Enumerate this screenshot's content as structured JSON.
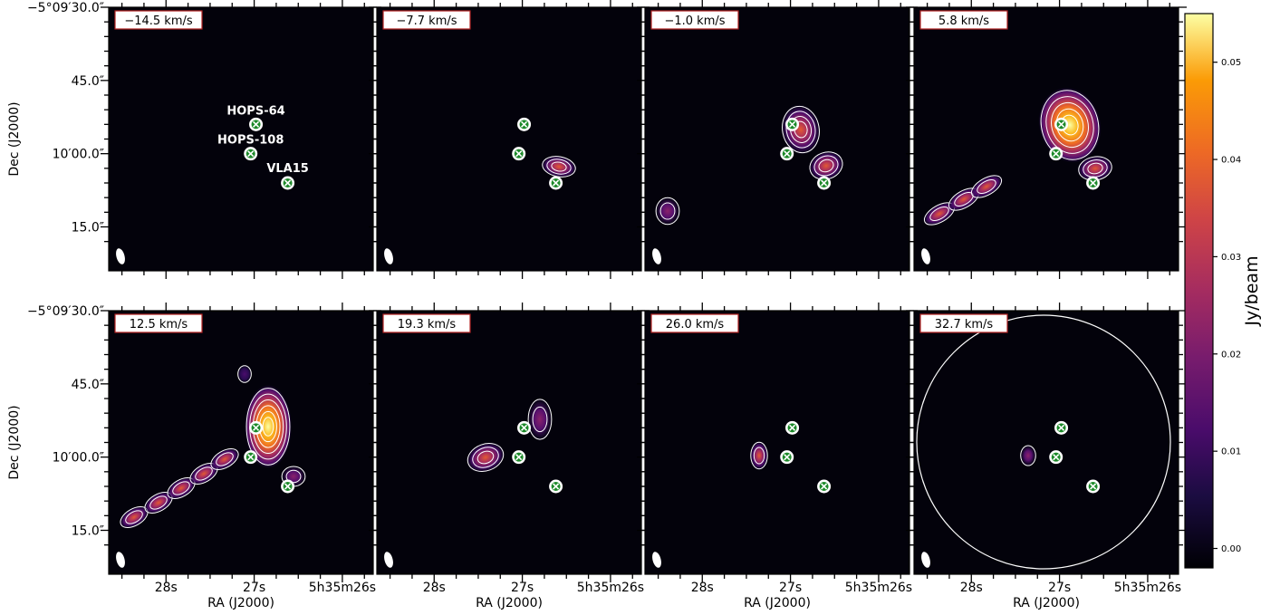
{
  "chart_data": {
    "type": "heatmap",
    "layout": "2 rows x 4 panels of channel maps",
    "panels": [
      {
        "velocity_label": "−14.5 km/s",
        "emission": [],
        "sources_labeled": true
      },
      {
        "velocity_label": "−7.7 km/s",
        "emission": [
          {
            "ra": 26.6,
            "dec": 3.0,
            "peak": 0.012
          }
        ]
      },
      {
        "velocity_label": "−1.0 km/s",
        "emission": [
          {
            "ra": 27.0,
            "dec": -4.5,
            "peak": 0.016
          },
          {
            "ra": 26.6,
            "dec": 3.0,
            "peak": 0.014
          },
          {
            "ra": 28.5,
            "dec": 12.0,
            "peak": 0.01
          }
        ]
      },
      {
        "velocity_label": "5.8 km/s",
        "emission": [
          {
            "ra": 26.85,
            "dec": -5.5,
            "peak": 0.055
          },
          {
            "ra": 26.5,
            "dec": 3.0,
            "peak": 0.025
          },
          {
            "ra": 28.3,
            "dec": 12.0,
            "peak": 0.025
          }
        ]
      },
      {
        "velocity_label": "12.5 km/s",
        "emission": [
          {
            "ra": 26.75,
            "dec": -5.0,
            "peak": 0.05
          },
          {
            "ra": 27.4,
            "dec": 0.0,
            "peak": 0.02
          },
          {
            "ra": 28.2,
            "dec": 11.0,
            "peak": 0.02
          }
        ]
      },
      {
        "velocity_label": "19.3 km/s",
        "emission": [
          {
            "ra": 27.2,
            "dec": 0.0,
            "peak": 0.025
          },
          {
            "ra": 26.7,
            "dec": -8.0,
            "peak": 0.01
          }
        ]
      },
      {
        "velocity_label": "26.0 km/s",
        "emission": [
          {
            "ra": 27.05,
            "dec": 0.0,
            "peak": 0.018
          }
        ]
      },
      {
        "velocity_label": "32.7 km/s",
        "emission": [
          {
            "ra": 27.05,
            "dec": 0.0,
            "peak": 0.012
          }
        ],
        "primary_beam_circle": true
      }
    ],
    "sources": [
      {
        "name": "HOPS-64",
        "ra": 26.98,
        "dec": -6.0
      },
      {
        "name": "HOPS-108",
        "ra": 27.04,
        "dec": 0.0
      },
      {
        "name": "VLA15",
        "ra": 26.62,
        "dec": 6.0
      }
    ],
    "x_axis": {
      "label": "RA (J2000)",
      "ticks": [
        "28s",
        "27s",
        "5h35m26s"
      ],
      "tick_values": [
        28,
        27,
        26
      ],
      "range": [
        28.65,
        25.65
      ]
    },
    "y_axis": {
      "label": "Dec (J2000)",
      "ticks": [
        "−5°09′30.0″",
        "45.0″",
        "10′00.0″",
        "15.0″"
      ],
      "tick_values": [
        -30,
        -15,
        0,
        15
      ],
      "range": [
        -30,
        24
      ]
    },
    "colorbar": {
      "label": "Jy/beam",
      "ticks": [
        "0.00",
        "0.01",
        "0.02",
        "0.03",
        "0.04",
        "0.05"
      ],
      "tick_values": [
        0,
        0.01,
        0.02,
        0.03,
        0.04,
        0.05
      ],
      "range": [
        -0.002,
        0.055
      ],
      "colormap": "inferno"
    },
    "grid": false,
    "colors": {
      "background": "#03020b",
      "contour": "#ffffff",
      "marker_fill": "#1d8a2a",
      "label_box_border": "#b22222"
    }
  }
}
